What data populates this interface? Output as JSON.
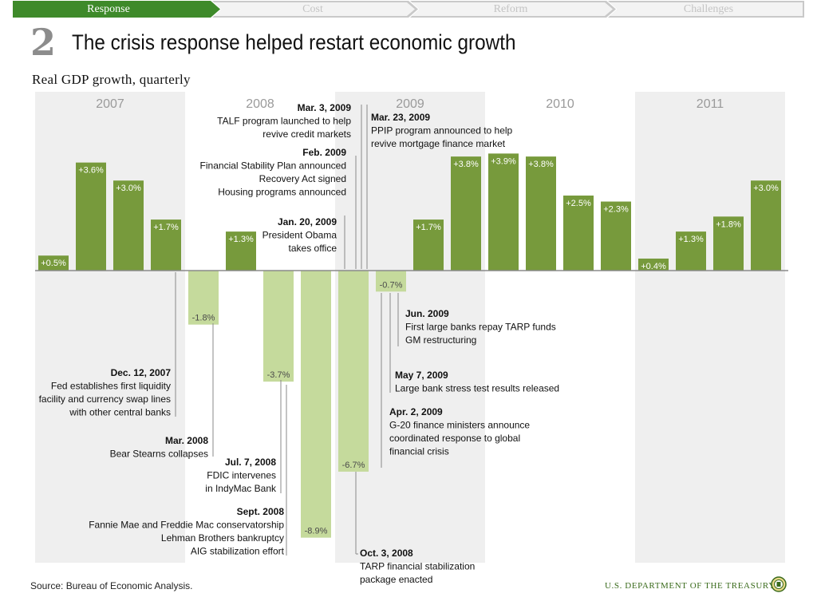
{
  "nav": {
    "steps": [
      {
        "label": "Response",
        "active": true
      },
      {
        "label": "Cost",
        "active": false
      },
      {
        "label": "Reform",
        "active": false
      },
      {
        "label": "Challenges",
        "active": false
      }
    ]
  },
  "header": {
    "section_number": "2",
    "title": "The crisis response helped restart economic growth",
    "subtitle": "Real GDP growth, quarterly"
  },
  "chart_data": {
    "type": "bar",
    "title": "Real GDP growth, quarterly",
    "ylabel": "Real GDP growth (%)",
    "ylim": [
      -9.5,
      5.8
    ],
    "years": [
      "2007",
      "2008",
      "2009",
      "2010",
      "2011"
    ],
    "categories": [
      "2007 Q1",
      "2007 Q2",
      "2007 Q3",
      "2007 Q4",
      "2008 Q1",
      "2008 Q2",
      "2008 Q3",
      "2008 Q4",
      "2009 Q1",
      "2009 Q2",
      "2009 Q3",
      "2009 Q4",
      "2010 Q1",
      "2010 Q2",
      "2010 Q3",
      "2010 Q4",
      "2011 Q1",
      "2011 Q2",
      "2011 Q3",
      "2011 Q4"
    ],
    "values": [
      0.5,
      3.6,
      3.0,
      1.7,
      -1.8,
      1.3,
      -3.7,
      -8.9,
      -6.7,
      -0.7,
      1.7,
      3.8,
      3.9,
      3.8,
      2.5,
      2.3,
      0.4,
      1.3,
      1.8,
      3.0
    ],
    "labels": [
      "+0.5%",
      "+3.6%",
      "+3.0%",
      "+1.7%",
      "-1.8%",
      "+1.3%",
      "-3.7%",
      "-8.9%",
      "-6.7%",
      "-0.7%",
      "+1.7%",
      "+3.8%",
      "+3.9%",
      "+3.8%",
      "+2.5%",
      "+2.3%",
      "+0.4%",
      "+1.3%",
      "+1.8%",
      "+3.0%"
    ],
    "colors": {
      "positive": "#779a3c",
      "negative": "#c5da9c",
      "band": "#efefef",
      "axis": "#8a8a8a"
    },
    "annotations": [
      {
        "bar": 3.1,
        "side": "below",
        "lines": [
          "Dec. 12, 2007",
          "Fed establishes first liquidity",
          "facility and currency swap lines",
          "with other central banks"
        ]
      },
      {
        "bar": 4.5,
        "side": "below",
        "lines": [
          "Mar. 2008",
          "Bear Stearns collapses"
        ]
      },
      {
        "bar": 5.5,
        "side": "below",
        "lines": [
          "Jul. 7, 2008",
          "FDIC intervenes",
          "in IndyMac Bank"
        ]
      },
      {
        "bar": 6.5,
        "side": "below",
        "lines": [
          "Sept. 2008",
          "Fannie Mae and Freddie Mac conservatorship",
          "Lehman Brothers bankruptcy",
          "AIG stabilization effort"
        ]
      },
      {
        "bar": 7.3,
        "side": "below",
        "lines": [
          "Oct. 3, 2008",
          "TARP financial stabilization",
          "package enacted"
        ]
      },
      {
        "bar": 7.9,
        "side": "above",
        "lines": [
          "Jan. 20, 2009",
          "President Obama",
          "takes office"
        ]
      },
      {
        "bar": 8.2,
        "side": "above",
        "lines": [
          "Feb. 2009",
          "Financial Stability Plan announced",
          "Recovery Act signed",
          "Housing programs announced"
        ]
      },
      {
        "bar": 8.4,
        "side": "above",
        "lines": [
          "Mar. 3, 2009",
          "TALF program launched to help",
          "revive credit markets"
        ]
      },
      {
        "bar": 8.55,
        "side": "above",
        "lines": [
          "Mar. 23, 2009",
          "PPIP program announced to help",
          "revive mortgage finance market"
        ]
      },
      {
        "bar": 8.9,
        "side": "below",
        "lines": [
          "Apr. 2, 2009",
          "G-20 finance ministers announce",
          "coordinated response to global",
          "financial crisis"
        ]
      },
      {
        "bar": 9.3,
        "side": "below",
        "lines": [
          "May 7, 2009",
          "Large bank stress test results released"
        ]
      },
      {
        "bar": 9.6,
        "side": "below",
        "lines": [
          "Jun. 2009",
          "First large banks repay TARP funds",
          "GM restructuring"
        ]
      }
    ]
  },
  "footer": {
    "source": "Source: Bureau of Economic Analysis.",
    "department": "U.S. DEPARTMENT OF THE TREASURY"
  }
}
